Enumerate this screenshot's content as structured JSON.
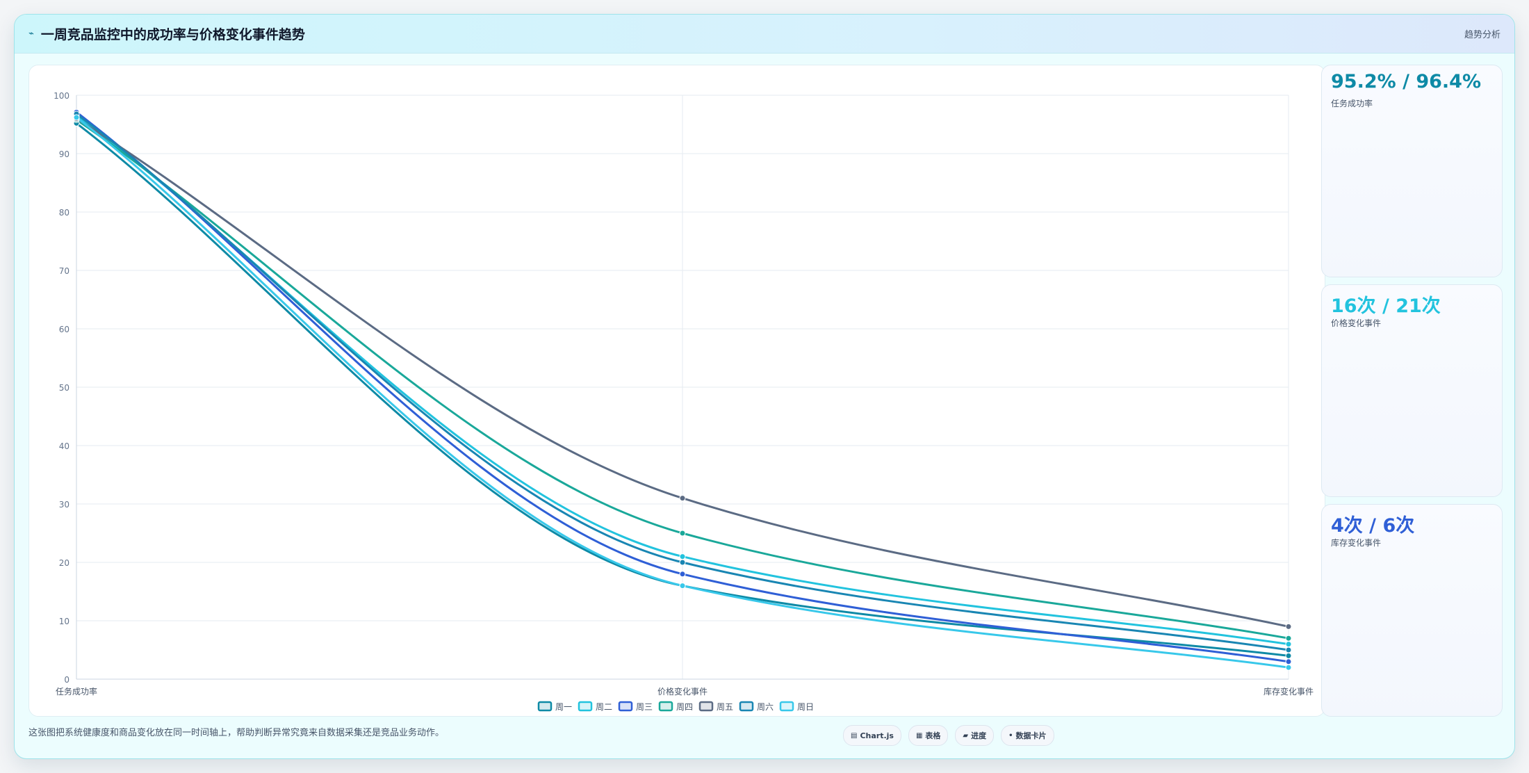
{
  "header": {
    "icon": "trend-icon",
    "title": "一周竞品监控中的成功率与价格变化事件趋势",
    "tag": "趋势分析"
  },
  "stats": [
    {
      "value": "95.2% / 96.4%",
      "label": "任务成功率",
      "color": "#0e8aa6"
    },
    {
      "value": "16次 / 21次",
      "label": "价格变化事件",
      "color": "#22c3de"
    },
    {
      "value": "4次 / 6次",
      "label": "库存变化事件",
      "color": "#2f5fd6"
    }
  ],
  "footer": {
    "text": "这张图把系统健康度和商品变化放在同一时间轴上，帮助判断异常究竟来自数据采集还是竞品业务动作。",
    "chips": [
      {
        "icon": "chart-icon",
        "glyph": "▤",
        "label": "Chart.js"
      },
      {
        "icon": "table-icon",
        "glyph": "▦",
        "label": "表格"
      },
      {
        "icon": "progress-icon",
        "glyph": "▰",
        "label": "进度"
      },
      {
        "icon": "card-icon",
        "glyph": "•",
        "label": "数据卡片"
      }
    ]
  },
  "chart_data": {
    "type": "line",
    "categories": [
      "任务成功率",
      "价格变化事件",
      "库存变化事件"
    ],
    "ylim": [
      0,
      100
    ],
    "yticks": [
      0,
      10,
      20,
      30,
      40,
      50,
      60,
      70,
      80,
      90,
      100
    ],
    "grid": true,
    "legend_position": "bottom",
    "series": [
      {
        "name": "周一",
        "color": "#0e8aa6",
        "values": [
          95.2,
          16,
          4
        ]
      },
      {
        "name": "周二",
        "color": "#22c3de",
        "values": [
          96.4,
          21,
          6
        ]
      },
      {
        "name": "周三",
        "color": "#2f5fd6",
        "values": [
          97.1,
          18,
          3
        ]
      },
      {
        "name": "周四",
        "color": "#1aa89a",
        "values": [
          95.8,
          25,
          7
        ]
      },
      {
        "name": "周五",
        "color": "#5b6b84",
        "values": [
          96.0,
          31,
          9
        ]
      },
      {
        "name": "周六",
        "color": "#1986b3",
        "values": [
          96.8,
          20,
          5
        ]
      },
      {
        "name": "周日",
        "color": "#38c8ea",
        "values": [
          96.2,
          16,
          2
        ]
      }
    ]
  }
}
